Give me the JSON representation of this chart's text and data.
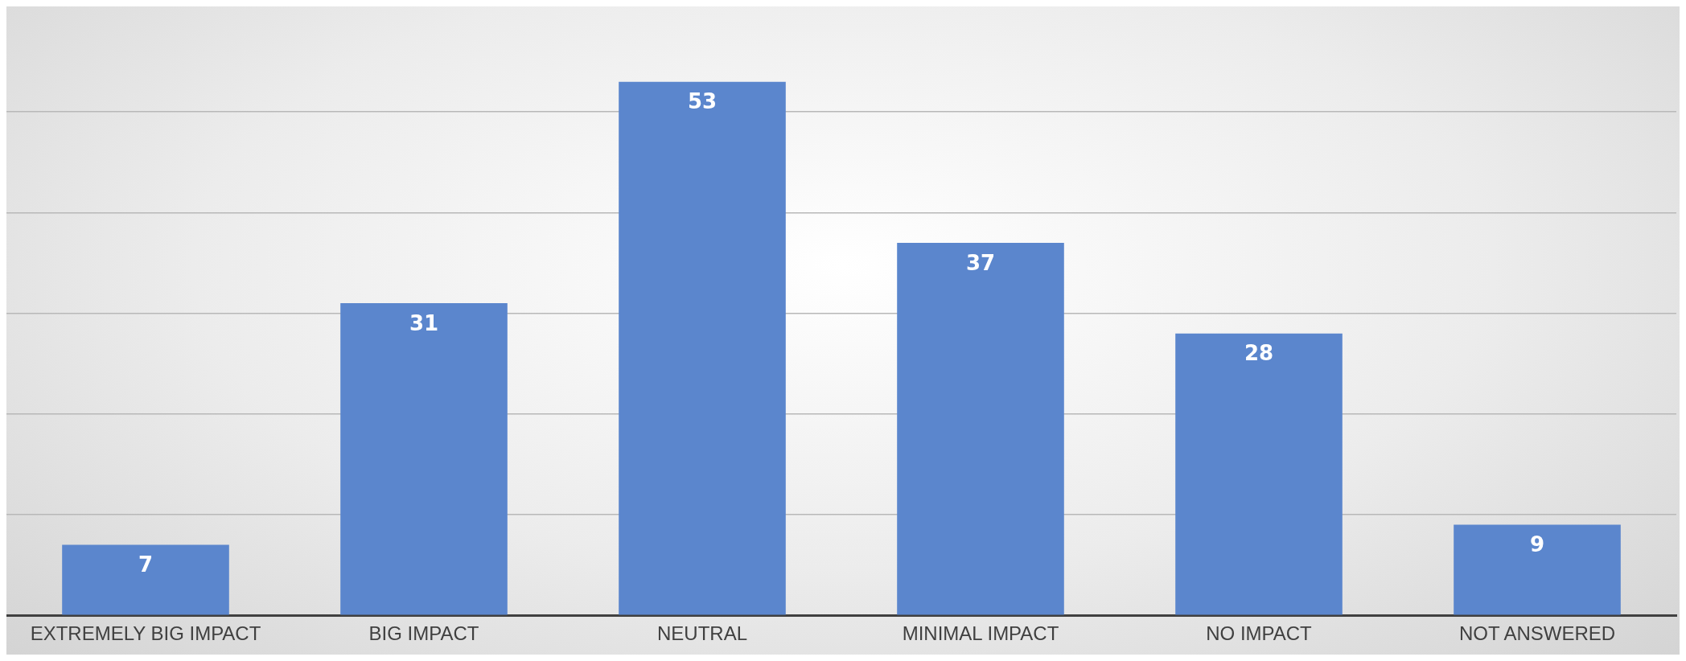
{
  "chart_data": {
    "type": "bar",
    "categories": [
      "EXTREMELY BIG IMPACT",
      "BIG IMPACT",
      "NEUTRAL",
      "MINIMAL IMPACT",
      "NO IMPACT",
      "NOT ANSWERED"
    ],
    "values": [
      7,
      31,
      53,
      37,
      28,
      9
    ],
    "color": "#5b86cd",
    "yticks": [
      {
        "value": 0,
        "label": null
      },
      {
        "value": 10,
        "label": null
      },
      {
        "value": 20,
        "label": null
      },
      {
        "value": 30,
        "label": null
      },
      {
        "value": 40,
        "label": null
      },
      {
        "value": 50,
        "label": null
      }
    ],
    "grid": "y",
    "tick_labels": "x",
    "data_labels": true,
    "legend": false
  }
}
